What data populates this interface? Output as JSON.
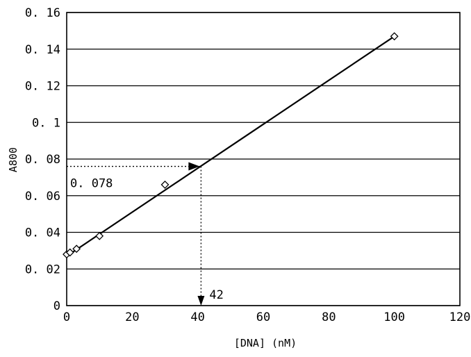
{
  "chart_data": {
    "type": "scatter",
    "xlabel": "[DNA] (nM)",
    "ylabel": "A800",
    "xlim": [
      0,
      120
    ],
    "ylim": [
      0,
      0.16
    ],
    "x_ticks": [
      "0",
      "20",
      "40",
      "60",
      "80",
      "100",
      "120"
    ],
    "y_ticks": [
      "0",
      "0.02",
      "0.04",
      "0.06",
      "0.08",
      "0.1",
      "0.12",
      "0.14",
      "0.16"
    ],
    "grid": "horizontal",
    "points": [
      {
        "x": 0,
        "y": 0.028
      },
      {
        "x": 1,
        "y": 0.029
      },
      {
        "x": 3,
        "y": 0.031
      },
      {
        "x": 10,
        "y": 0.038
      },
      {
        "x": 30,
        "y": 0.066
      },
      {
        "x": 100,
        "y": 0.147
      }
    ],
    "fit_line": {
      "x": [
        0,
        100
      ],
      "y": [
        0.027,
        0.147
      ]
    },
    "annotations": {
      "y_value_label": "0. 078",
      "x_value_label": "42",
      "marker_x": 41,
      "marker_y": 0.076
    }
  }
}
